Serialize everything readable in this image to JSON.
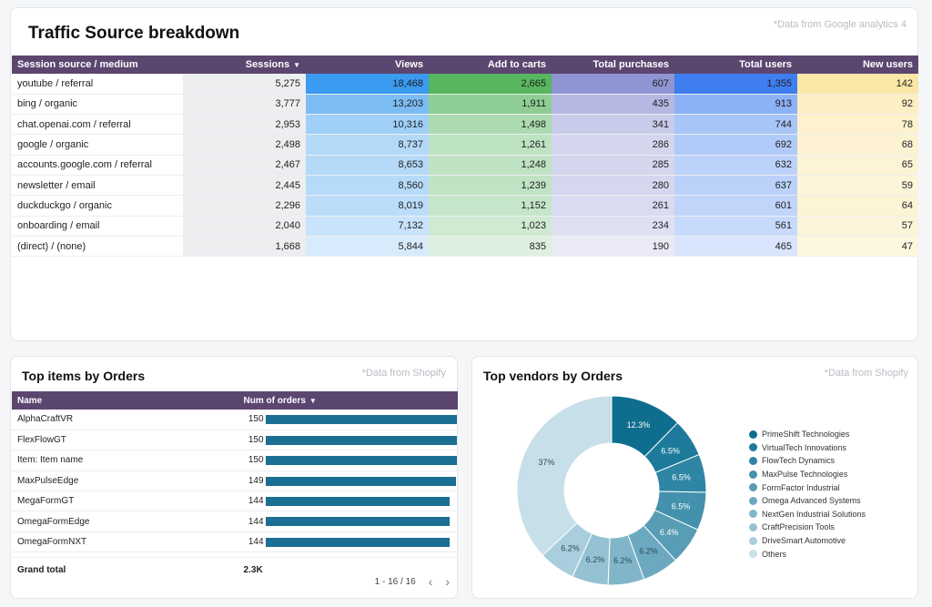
{
  "traffic": {
    "title": "Traffic Source breakdown",
    "note": "*Data from Google analytics 4",
    "columns": [
      "Session source / medium",
      "Sessions",
      "Views",
      "Add to carts",
      "Total purchases",
      "Total users",
      "New users"
    ],
    "sort_arrow": "▼",
    "rows": [
      {
        "source": "youtube / referral",
        "sessions": "5,275",
        "views": "18,468",
        "carts": "2,665",
        "purchases": "607",
        "users": "1,355",
        "new_users": "142"
      },
      {
        "source": "bing / organic",
        "sessions": "3,777",
        "views": "13,203",
        "carts": "1,911",
        "purchases": "435",
        "users": "913",
        "new_users": "92"
      },
      {
        "source": "chat.openai.com / referral",
        "sessions": "2,953",
        "views": "10,316",
        "carts": "1,498",
        "purchases": "341",
        "users": "744",
        "new_users": "78"
      },
      {
        "source": "google / organic",
        "sessions": "2,498",
        "views": "8,737",
        "carts": "1,261",
        "purchases": "286",
        "users": "692",
        "new_users": "68"
      },
      {
        "source": "accounts.google.com / referral",
        "sessions": "2,467",
        "views": "8,653",
        "carts": "1,248",
        "purchases": "285",
        "users": "632",
        "new_users": "65"
      },
      {
        "source": "newsletter / email",
        "sessions": "2,445",
        "views": "8,560",
        "carts": "1,239",
        "purchases": "280",
        "users": "637",
        "new_users": "59"
      },
      {
        "source": "duckduckgo / organic",
        "sessions": "2,296",
        "views": "8,019",
        "carts": "1,152",
        "purchases": "261",
        "users": "601",
        "new_users": "64"
      },
      {
        "source": "onboarding / email",
        "sessions": "2,040",
        "views": "7,132",
        "carts": "1,023",
        "purchases": "234",
        "users": "561",
        "new_users": "57"
      },
      {
        "source": "(direct) / (none)",
        "sessions": "1,668",
        "views": "5,844",
        "carts": "835",
        "purchases": "190",
        "users": "465",
        "new_users": "47"
      }
    ],
    "colors": {
      "sessions": "#b8bcc2",
      "views": "#3a9bf0",
      "carts": "#57b65f",
      "purchases": "#8f95d3",
      "users": "#3f7ef0",
      "new_users": "#fbe7a6"
    }
  },
  "items": {
    "title": "Top items by Orders",
    "note": "*Data from Shopify",
    "columns": [
      "Name",
      "Num of orders"
    ],
    "sort_arrow": "▼",
    "rows": [
      {
        "name": "AlphaCraftVR",
        "orders": 150
      },
      {
        "name": "FlexFlowGT",
        "orders": 150
      },
      {
        "name": "Item: Item name",
        "orders": 150
      },
      {
        "name": "MaxPulseEdge",
        "orders": 149
      },
      {
        "name": "MegaFormGT",
        "orders": 144
      },
      {
        "name": "OmegaFormEdge",
        "orders": 144
      },
      {
        "name": "OmegaFormNXT",
        "orders": 144
      }
    ],
    "max_orders": 150,
    "grand_total_label": "Grand total",
    "grand_total_value": "2.3K",
    "pagination": "1 - 16 / 16",
    "bar_color": "#1b6f93"
  },
  "vendors": {
    "title": "Top vendors by Orders",
    "note": "*Data from Shopify",
    "chart_data": {
      "type": "pie",
      "title": "Top vendors by Orders",
      "donut": true,
      "slices": [
        {
          "label": "PrimeShift Technologies",
          "value": 12.3,
          "display": "12.3%",
          "color": "#0f6e8e"
        },
        {
          "label": "VirtualTech Innovations",
          "value": 6.5,
          "display": "6.5%",
          "color": "#1d7a9a"
        },
        {
          "label": "FlowTech Dynamics",
          "value": 6.5,
          "display": "6.5%",
          "color": "#2f86a4"
        },
        {
          "label": "MaxPulse Technologies",
          "value": 6.5,
          "display": "6.5%",
          "color": "#4391ad"
        },
        {
          "label": "FormFactor Industrial",
          "value": 6.4,
          "display": "6.4%",
          "color": "#589db6"
        },
        {
          "label": "Omega Advanced Systems",
          "value": 6.2,
          "display": "6.2%",
          "color": "#6ca9c0"
        },
        {
          "label": "NextGen Industrial Solutions",
          "value": 6.2,
          "display": "6.2%",
          "color": "#81b6ca"
        },
        {
          "label": "CraftPrecision Tools",
          "value": 6.2,
          "display": "6.2%",
          "color": "#95c2d3"
        },
        {
          "label": "DriveSmart Automotive",
          "value": 6.2,
          "display": "6.2%",
          "color": "#a9cedd"
        },
        {
          "label": "Others",
          "value": 37,
          "display": "37%",
          "color": "#c7dfe8"
        }
      ]
    }
  }
}
